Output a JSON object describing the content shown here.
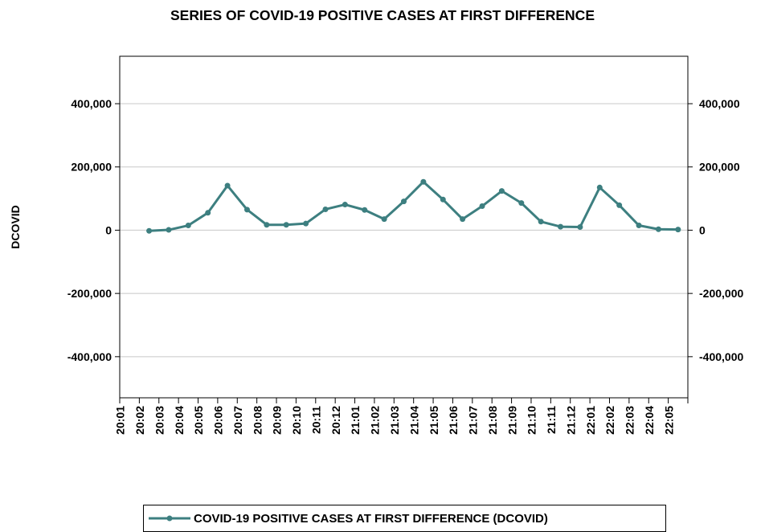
{
  "title": "SERIES OF COVID-19 POSITIVE CASES AT FIRST DIFFERENCE",
  "colors": {
    "series": "#3d7f80",
    "grid": "#c8c8c8",
    "axis": "#000000"
  },
  "chart_data": {
    "type": "line",
    "title": "SERIES OF COVID-19 POSITIVE CASES AT FIRST DIFFERENCE",
    "ylabel": "DCOVID",
    "xlabel": "",
    "ylim": [
      -530000,
      550000
    ],
    "yticks": [
      400000,
      200000,
      0,
      -200000,
      -400000
    ],
    "ytick_labels": [
      "400,000",
      "200,000",
      "0",
      "-200,000",
      "-400,000"
    ],
    "right_axis": true,
    "grid": "horizontal",
    "legend_position": "bottom",
    "categories": [
      "20:01",
      "20:02",
      "20:03",
      "20:04",
      "20:05",
      "20:06",
      "20:07",
      "20:08",
      "20:09",
      "20:10",
      "20:11",
      "20:12",
      "21:01",
      "21:02",
      "21:03",
      "21:04",
      "21:05",
      "21:06",
      "21:07",
      "21:08",
      "21:09",
      "21:10",
      "21:11",
      "21:12",
      "22:01",
      "22:02",
      "22:03",
      "22:04",
      "22:05"
    ],
    "series": [
      {
        "name": "COVID-19 POSITIVE CASES AT FIRST DIFFERENCE (DCOVID)",
        "values": [
          null,
          -2000,
          1000,
          15000,
          55000,
          141000,
          65000,
          17000,
          17000,
          21000,
          66000,
          81000,
          64000,
          35000,
          91000,
          153000,
          97000,
          35000,
          76000,
          124000,
          86000,
          27000,
          11000,
          10000,
          135000,
          79000,
          15000,
          3000,
          2000
        ]
      }
    ]
  }
}
